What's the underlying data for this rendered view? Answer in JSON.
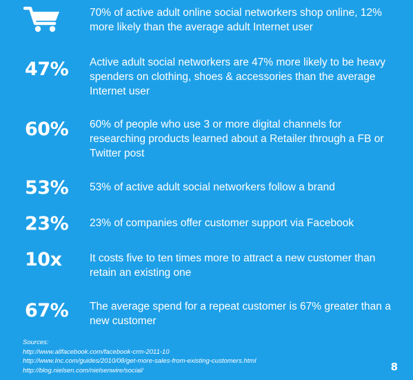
{
  "colors": {
    "background": "#1ea0e8",
    "text": "#ffffff"
  },
  "rows": [
    {
      "icon": "shopping-cart-icon",
      "text": "70% of active adult online social networkers shop online, 12% more likely than the average adult Internet user"
    },
    {
      "stat": "47%",
      "text": "Active adult social networkers are 47% more likely to be heavy spenders on clothing, shoes & accessories than the average Internet user"
    },
    {
      "stat": "60%",
      "text": "60% of people who use 3 or more digital channels for researching products learned about a Retailer through a FB or Twitter post"
    },
    {
      "stat": "53%",
      "text": "53% of active adult social networkers follow a brand"
    },
    {
      "stat": "23%",
      "text": "23% of companies offer customer support via Facebook"
    },
    {
      "stat": "10x",
      "text": "It costs five to ten times more to attract a new customer than retain an existing one"
    },
    {
      "stat": "67%",
      "text": "The average spend for a repeat customer is 67% greater than a new customer"
    }
  ],
  "sources": {
    "label": "Sources:",
    "links": [
      "http://www.allfacebook.com/facebook-crm-2011-10",
      "http://www.Inc.com/guides/2010/08/get-more-sales-from-existing-customers.html",
      "http://blog.nielsen.com/nielsenwire/social/"
    ]
  },
  "page_number": "8"
}
